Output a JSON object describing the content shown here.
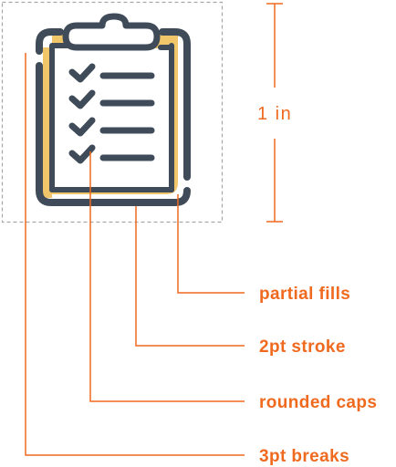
{
  "colors": {
    "accent": "#ef6a1f",
    "stroke": "#3f4b59",
    "fill": "#f1c56a",
    "guide": "#a7a7a7",
    "paper": "#ffffff"
  },
  "icon": {
    "name": "clipboard-checklist-icon",
    "checklist_rows": 4
  },
  "dimension": {
    "label": "1 in"
  },
  "callouts": [
    {
      "label": "partial fills"
    },
    {
      "label": "2pt stroke"
    },
    {
      "label": "rounded caps"
    },
    {
      "label": "3pt breaks"
    }
  ]
}
